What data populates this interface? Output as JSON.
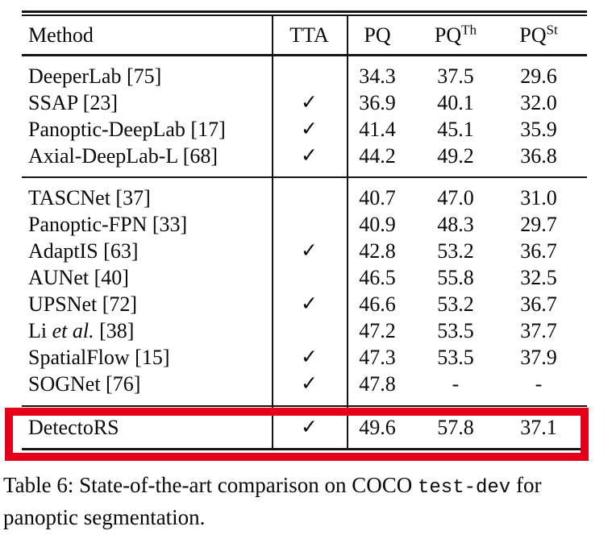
{
  "page": {
    "background": "#ffffff"
  },
  "highlight": {
    "color": "#e50019"
  },
  "table": {
    "header": {
      "method": "Method",
      "tta": "TTA",
      "pq": "PQ",
      "pqth_base": "PQ",
      "pqth_sup": "Th",
      "pqst_base": "PQ",
      "pqst_sup": "St"
    },
    "check_glyph": "✓",
    "sections": [
      {
        "rows": [
          {
            "method": "DeeperLab [75]",
            "tta": "",
            "pq": "34.3",
            "pqth": "37.5",
            "pqst": "29.6"
          },
          {
            "method": "SSAP [23]",
            "tta": "✓",
            "pq": "36.9",
            "pqth": "40.1",
            "pqst": "32.0"
          },
          {
            "method": "Panoptic-DeepLab [17]",
            "tta": "✓",
            "pq": "41.4",
            "pqth": "45.1",
            "pqst": "35.9"
          },
          {
            "method": "Axial-DeepLab-L [68]",
            "tta": "✓",
            "pq": "44.2",
            "pqth": "49.2",
            "pqst": "36.8"
          }
        ]
      },
      {
        "rows": [
          {
            "method": "TASCNet [37]",
            "tta": "",
            "pq": "40.7",
            "pqth": "47.0",
            "pqst": "31.0"
          },
          {
            "method": "Panoptic-FPN [33]",
            "tta": "",
            "pq": "40.9",
            "pqth": "48.3",
            "pqst": "29.7"
          },
          {
            "method": "AdaptIS [63]",
            "tta": "✓",
            "pq": "42.8",
            "pqth": "53.2",
            "pqst": "36.7"
          },
          {
            "method": "AUNet [40]",
            "tta": "",
            "pq": "46.5",
            "pqth": "55.8",
            "pqst": "32.5"
          },
          {
            "method": "UPSNet [72]",
            "tta": "✓",
            "pq": "46.6",
            "pqth": "53.2",
            "pqst": "36.7"
          },
          {
            "method_pre": "Li ",
            "method_italic": "et al.",
            "method_post": " [38]",
            "tta": "",
            "pq": "47.2",
            "pqth": "53.5",
            "pqst": "37.7"
          },
          {
            "method": "SpatialFlow [15]",
            "tta": "✓",
            "pq": "47.3",
            "pqth": "53.5",
            "pqst": "37.9"
          },
          {
            "method": "SOGNet [76]",
            "tta": "✓",
            "pq": "47.8",
            "pqth": "-",
            "pqst": "-"
          }
        ]
      },
      {
        "rows": [
          {
            "method": "DetectoRS",
            "tta": "✓",
            "pq": "49.6",
            "pqth": "57.8",
            "pqst": "37.1"
          }
        ]
      }
    ]
  },
  "caption": {
    "line1_pre": "Table 6: State-of-the-art comparison on COCO ",
    "line1_mono": "test-dev",
    "line1_post": " for",
    "line2": "panoptic segmentation."
  }
}
